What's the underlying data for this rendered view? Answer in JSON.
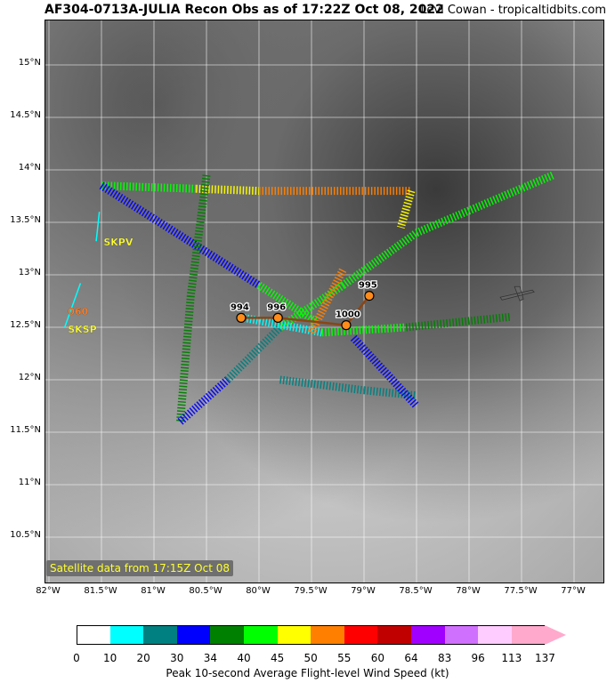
{
  "header": {
    "title": "AF304-0713A-JULIA Recon Obs as of 17:22Z Oct 08, 2022",
    "credit": "Levi Cowan - tropicaltidbits.com"
  },
  "map": {
    "lat_labels": [
      "15°N",
      "14.5°N",
      "14°N",
      "13.5°N",
      "13°N",
      "12.5°N",
      "12°N",
      "11.5°N",
      "11°N",
      "10.5°N"
    ],
    "lon_labels": [
      "82°W",
      "81.5°W",
      "81°W",
      "80.5°W",
      "80°W",
      "79.5°W",
      "79°W",
      "78.5°W",
      "78°W",
      "77.5°W",
      "77°W"
    ],
    "sat_label": "Satellite data from 17:15Z Oct 08",
    "stations": [
      {
        "name": "SKPV",
        "color": "#ffff33"
      },
      {
        "name": "060",
        "color": "#ff7f27"
      },
      {
        "name": "SKSP",
        "color": "#ffff33"
      }
    ],
    "pressure_obs": [
      {
        "label": "994",
        "lon": -80.17,
        "lat": 12.59
      },
      {
        "label": "996",
        "lon": -79.82,
        "lat": 12.59
      },
      {
        "label": "1000",
        "lon": -79.17,
        "lat": 12.52
      },
      {
        "label": "995",
        "lon": -78.95,
        "lat": 12.8
      }
    ],
    "aircraft_icon": "plane-icon"
  },
  "colorbar": {
    "label": "Peak 10-second Average Flight-level Wind Speed (kt)",
    "ticks": [
      "0",
      "10",
      "20",
      "30",
      "34",
      "40",
      "45",
      "50",
      "55",
      "60",
      "64",
      "83",
      "96",
      "113",
      "137"
    ],
    "colors": [
      "#ffffff",
      "#00ffff",
      "#008080",
      "#0000ff",
      "#008000",
      "#00ff00",
      "#ffff00",
      "#ff7f00",
      "#ff0000",
      "#c00000",
      "#a000ff",
      "#d070ff",
      "#ffccff",
      "#ffaacc"
    ]
  }
}
